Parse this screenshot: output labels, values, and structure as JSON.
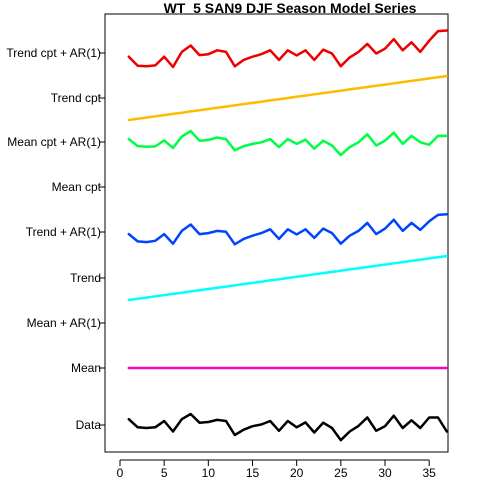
{
  "chart_data": {
    "type": "line",
    "title": "WT_5 SAN9 DJF Season Model Series",
    "xlabel": "",
    "ylabel": "",
    "xlim": [
      0,
      39
    ],
    "xticks": [
      0,
      5,
      10,
      15,
      20,
      25,
      30,
      35
    ],
    "grid": false,
    "legend": "none",
    "rows": [
      "Data",
      "Mean",
      "Mean + AR(1)",
      "Trend",
      "Trend + AR(1)",
      "Mean cpt",
      "Mean cpt + AR(1)",
      "Trend cpt",
      "Trend cpt + AR(1)"
    ],
    "x": [
      1,
      2,
      3,
      4,
      5,
      6,
      7,
      8,
      9,
      10,
      11,
      12,
      13,
      14,
      15,
      16,
      17,
      18,
      19,
      20,
      21,
      22,
      23,
      24,
      25,
      26,
      27,
      28,
      29,
      30,
      31,
      32,
      33,
      34,
      35,
      36,
      37
    ],
    "series": [
      {
        "row": "Data",
        "color": "#000000",
        "values": [
          0.45,
          0.22,
          0.2,
          0.22,
          0.4,
          0.1,
          0.45,
          0.6,
          0.35,
          0.37,
          0.43,
          0.4,
          0.0,
          0.15,
          0.25,
          0.3,
          0.4,
          0.12,
          0.4,
          0.22,
          0.36,
          0.07,
          0.35,
          0.2,
          -0.15,
          0.1,
          0.26,
          0.5,
          0.12,
          0.25,
          0.55,
          0.2,
          0.42,
          0.2,
          0.5,
          0.5,
          0.1
        ]
      },
      {
        "row": "Mean",
        "color": "#ff00cc",
        "values": [
          0.2,
          0.2,
          0.2,
          0.2,
          0.2,
          0.2,
          0.2,
          0.2,
          0.2,
          0.2,
          0.2,
          0.2,
          0.2,
          0.2,
          0.2,
          0.2,
          0.2,
          0.2,
          0.2,
          0.2,
          0.2,
          0.2,
          0.2,
          0.2,
          0.2,
          0.2,
          0.2,
          0.2,
          0.2,
          0.2,
          0.2,
          0.2,
          0.2,
          0.2,
          0.2,
          0.2,
          0.2
        ]
      },
      {
        "row": "Trend",
        "color": "#00ffff",
        "values": [
          0.0,
          0.0306,
          0.0611,
          0.0917,
          0.1222,
          0.1528,
          0.1833,
          0.2139,
          0.2444,
          0.275,
          0.3056,
          0.3361,
          0.3667,
          0.3972,
          0.4278,
          0.4583,
          0.4889,
          0.5194,
          0.55,
          0.5806,
          0.6111,
          0.6417,
          0.6722,
          0.7028,
          0.7333,
          0.7639,
          0.7944,
          0.825,
          0.8556,
          0.8861,
          0.9167,
          0.9472,
          0.9778,
          1.0083,
          1.0389,
          1.0694,
          1.1
        ]
      },
      {
        "row": "Trend + AR(1)",
        "color": "#0044ff",
        "values": [
          0.45,
          0.22,
          0.2,
          0.24,
          0.45,
          0.15,
          0.55,
          0.75,
          0.45,
          0.48,
          0.55,
          0.52,
          0.13,
          0.3,
          0.4,
          0.48,
          0.6,
          0.3,
          0.6,
          0.44,
          0.6,
          0.33,
          0.62,
          0.48,
          0.15,
          0.4,
          0.55,
          0.8,
          0.45,
          0.62,
          0.9,
          0.55,
          0.8,
          0.58,
          0.85,
          1.05,
          1.07
        ]
      },
      {
        "row": "Mean cpt + AR(1)",
        "color": "#00ff44",
        "values": [
          0.5,
          0.28,
          0.26,
          0.27,
          0.46,
          0.22,
          0.58,
          0.75,
          0.45,
          0.47,
          0.55,
          0.5,
          0.15,
          0.28,
          0.35,
          0.4,
          0.5,
          0.25,
          0.5,
          0.35,
          0.48,
          0.2,
          0.45,
          0.3,
          0.0,
          0.25,
          0.4,
          0.65,
          0.3,
          0.45,
          0.7,
          0.35,
          0.6,
          0.4,
          0.32,
          0.6,
          0.6
        ]
      },
      {
        "row": "Trend cpt",
        "color": "#ffbb00",
        "values": [
          0.0,
          0.0306,
          0.0611,
          0.0917,
          0.1222,
          0.1528,
          0.1833,
          0.2139,
          0.2444,
          0.275,
          0.3056,
          0.3361,
          0.3667,
          0.3972,
          0.4278,
          0.4583,
          0.4889,
          0.5194,
          0.55,
          0.5806,
          0.6111,
          0.6417,
          0.6722,
          0.7028,
          0.7333,
          0.7639,
          0.7944,
          0.825,
          0.8556,
          0.8861,
          0.9167,
          0.9472,
          0.9778,
          1.0083,
          1.0389,
          1.0694,
          1.1
        ]
      },
      {
        "row": "Trend cpt + AR(1)",
        "color": "#ee0000",
        "values": [
          0.4,
          0.12,
          0.1,
          0.13,
          0.4,
          0.08,
          0.55,
          0.75,
          0.45,
          0.48,
          0.6,
          0.55,
          0.1,
          0.3,
          0.4,
          0.48,
          0.6,
          0.3,
          0.6,
          0.44,
          0.6,
          0.3,
          0.62,
          0.5,
          0.1,
          0.38,
          0.55,
          0.8,
          0.5,
          0.65,
          0.95,
          0.6,
          0.85,
          0.55,
          0.9,
          1.2,
          1.22
        ]
      }
    ]
  }
}
